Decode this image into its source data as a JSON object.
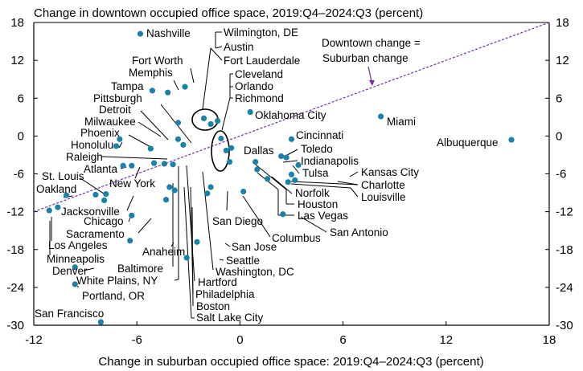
{
  "chart_data": {
    "type": "scatter",
    "title": "Change in downtown occupied office space, 2019:Q4–2024:Q3 (percent)",
    "xlabel": "Change in suburban occupied office space: 2019:Q4–2024:Q3 (percent)",
    "xlim": [
      -12,
      18
    ],
    "ylim": [
      -30,
      18
    ],
    "xticks": [
      -12,
      -6,
      0,
      6,
      12,
      18
    ],
    "xtick_labels": [
      "-12",
      "-6",
      "0",
      "6",
      "12",
      "18"
    ],
    "yticks": [
      -30,
      -24,
      -18,
      -12,
      -6,
      0,
      6,
      12,
      18
    ],
    "ytick_labels": [
      "-30",
      "-24",
      "-18",
      "-12",
      "-6",
      "0",
      "6",
      "12",
      "18"
    ],
    "reference_line": {
      "label_lines": [
        "Downtown change =",
        "Suburban change"
      ],
      "style": "dashed",
      "color": "#7030a0"
    },
    "marker_color": "#1a82a6",
    "points": [
      {
        "name": "Nashville",
        "x": -5.8,
        "y": 16.2
      },
      {
        "name": "Wilmington, DE",
        "x": -2.1,
        "y": 2.8
      },
      {
        "name": "Austin",
        "x": -1.7,
        "y": 1.9
      },
      {
        "name": "Fort Lauderdale",
        "x": -1.3,
        "y": 2.4
      },
      {
        "name": "Fort Worth",
        "x": -3.2,
        "y": 7.8
      },
      {
        "name": "Memphis",
        "x": -4.2,
        "y": 6.9
      },
      {
        "name": "Tampa",
        "x": -5.1,
        "y": 7.2
      },
      {
        "name": "Pittsburgh",
        "x": -3.6,
        "y": 2.1
      },
      {
        "name": "Cleveland",
        "x": -1.1,
        "y": -0.4
      },
      {
        "name": "Orlando",
        "x": -0.8,
        "y": -2.3
      },
      {
        "name": "Richmond",
        "x": -0.6,
        "y": -4.1
      },
      {
        "name": "Oklahoma City",
        "x": 0.6,
        "y": 3.8
      },
      {
        "name": "Miami",
        "x": 8.2,
        "y": 3.1
      },
      {
        "name": "Detroit",
        "x": -3.3,
        "y": -1.4
      },
      {
        "name": "Milwaukee",
        "x": -3.6,
        "y": -0.5
      },
      {
        "name": "Phoenix",
        "x": -5.2,
        "y": -2.0
      },
      {
        "name": "Honolulu",
        "x": -7.0,
        "y": -0.5
      },
      {
        "name": "Raleigh",
        "x": -7.2,
        "y": -1.6
      },
      {
        "name": "Dallas",
        "x": -0.5,
        "y": -1.9
      },
      {
        "name": "Cincinnati",
        "x": 3.0,
        "y": -0.5
      },
      {
        "name": "Albuquerque",
        "x": 15.8,
        "y": -0.6
      },
      {
        "name": "Toledo",
        "x": 2.4,
        "y": -3.2
      },
      {
        "name": "Indianapolis",
        "x": 2.7,
        "y": -3.4
      },
      {
        "name": "Atlanta",
        "x": -6.8,
        "y": -4.7
      },
      {
        "name": "New York",
        "x": -6.3,
        "y": -4.7
      },
      {
        "name": "Tulsa",
        "x": 3.4,
        "y": -4.6
      },
      {
        "name": "Kansas City",
        "x": 3.0,
        "y": -6.1
      },
      {
        "name": "Charlotte",
        "x": 3.2,
        "y": -7.0
      },
      {
        "name": "Louisville",
        "x": 2.8,
        "y": -7.3
      },
      {
        "name": "St. Louis",
        "x": -8.4,
        "y": -9.3
      },
      {
        "name": "Oakland",
        "x": -10.1,
        "y": -9.4
      },
      {
        "name": "Norfolk",
        "x": 1.6,
        "y": -6.8
      },
      {
        "name": "Houston",
        "x": 1.0,
        "y": -5.3
      },
      {
        "name": "Las Vegas",
        "x": 0.9,
        "y": -4.1
      },
      {
        "name": "Jacksonville",
        "x": -7.8,
        "y": -9.2
      },
      {
        "name": "Chicago",
        "x": -7.9,
        "y": -10.2
      },
      {
        "name": "San Diego",
        "x": -1.7,
        "y": -8.1
      },
      {
        "name": "San Antonio",
        "x": 2.5,
        "y": -12.4
      },
      {
        "name": "Columbus",
        "x": 0.2,
        "y": -8.8
      },
      {
        "name": "Sacramento",
        "x": -6.3,
        "y": -12.6
      },
      {
        "name": "Los Angeles",
        "x": -10.6,
        "y": -11.3
      },
      {
        "name": "Minneapolis",
        "x": -11.1,
        "y": -11.8
      },
      {
        "name": "Anaheim",
        "x": -6.4,
        "y": -16.6
      },
      {
        "name": "San Jose",
        "x": -2.5,
        "y": -16.8
      },
      {
        "name": "Seattle",
        "x": -3.1,
        "y": -19.3
      },
      {
        "name": "Denver",
        "x": -9.6,
        "y": -20.8
      },
      {
        "name": "Washington, DC",
        "x": -1.9,
        "y": -9.1
      },
      {
        "name": "Baltimore",
        "x": -3.8,
        "y": -8.6
      },
      {
        "name": "White Plains, NY",
        "x": -5.0,
        "y": -4.3
      },
      {
        "name": "Portland, OR",
        "x": -9.6,
        "y": -23.5
      },
      {
        "name": "Hartford",
        "x": -4.4,
        "y": -4.4
      },
      {
        "name": "Philadelphia",
        "x": -3.9,
        "y": -4.5
      },
      {
        "name": "Boston",
        "x": -4.1,
        "y": -8.1
      },
      {
        "name": "Salt Lake City",
        "x": -4.3,
        "y": -10.1
      },
      {
        "name": "San Francisco",
        "x": -8.1,
        "y": -29.5
      }
    ]
  }
}
